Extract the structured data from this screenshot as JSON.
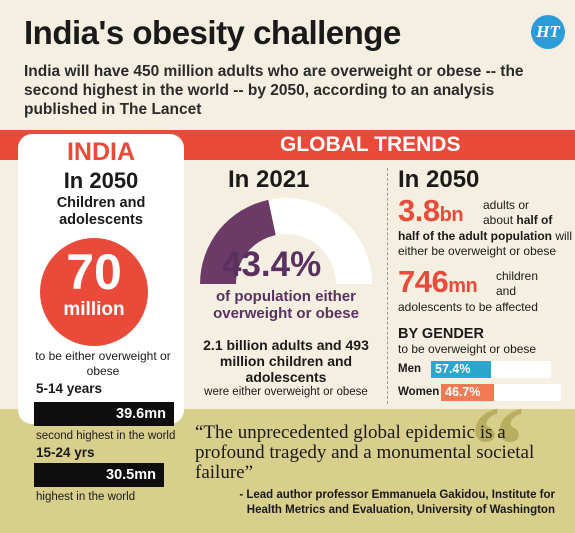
{
  "header": {
    "title": "India's obesity challenge",
    "logo_text": "HT",
    "subtitle": "India will have 450 million adults who are overweight or obese -- the second highest in the world -- by 2050, according to an analysis published in The Lancet"
  },
  "banner": {
    "label": "GLOBAL TRENDS"
  },
  "india": {
    "title": "INDIA",
    "year": "In 2050",
    "group": "Children and adolescents",
    "big_number": "70",
    "big_unit": "million",
    "caption": "to be either overweight or obese",
    "age1_label": "5-14 years",
    "age1_value": "39.6mn",
    "age1_note": "second highest in the world",
    "age2_label": "15-24 yrs",
    "age2_value": "30.5mn",
    "age2_note": "highest in the world"
  },
  "y2021": {
    "heading": "In 2021",
    "percent_text": "43.4%",
    "percent_value": 43.4,
    "percent_caption": "of population either overweight or obese",
    "stat": "2.1 billion adults and 493 million children and adolescents",
    "stat_note": "were either overweight or obese"
  },
  "y2050": {
    "heading": "In 2050",
    "adults_number": "3.8",
    "adults_unit": "bn",
    "adults_text_1": "adults or",
    "adults_text_2": "about",
    "adults_text_bold": "half of the adult population",
    "adults_text_3": "will",
    "adults_text_4": "either be overweight or obese",
    "children_number": "746",
    "children_unit": "mn",
    "children_text_1": "children",
    "children_text_2": "and",
    "children_text_3": "adolescents to be affected"
  },
  "gender": {
    "heading": "BY GENDER",
    "subheading": "to be overweight or obese",
    "items": [
      {
        "label": "Men",
        "value_text": "57.4%",
        "value": 57.4,
        "color": "#2ba6cc"
      },
      {
        "label": "Women",
        "value_text": "46.7%",
        "value": 46.7,
        "color": "#ee7b54"
      }
    ]
  },
  "quote": {
    "text": "“The unprecedented global epidemic is a profound tragedy and a monumental societal failure”",
    "attribution": "- Lead author professor Emmanuela Gakidou, Institute for Health Metrics and Evaluation, University of Washington"
  },
  "colors": {
    "accent_red": "#e94a3a",
    "plum": "#6b3a67",
    "background": "#f4efe0",
    "quote_bg": "#d8cf8c"
  }
}
